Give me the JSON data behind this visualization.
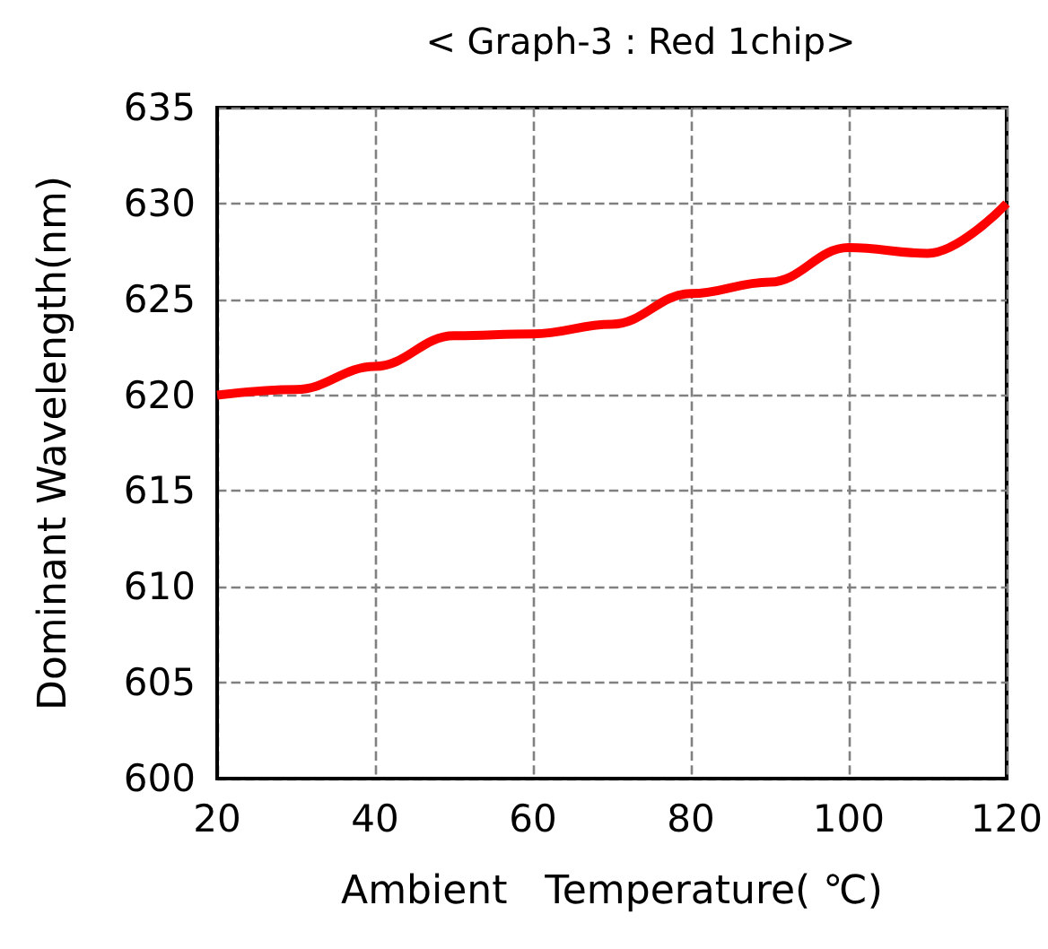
{
  "chart_data": {
    "type": "line",
    "title": "< Graph-3 : Red 1chip>",
    "xlabel": "Ambient   Temperature( ℃)",
    "ylabel": "Dominant Wavelength(nm)",
    "x": [
      20,
      30,
      40,
      50,
      60,
      70,
      80,
      90,
      100,
      110,
      120
    ],
    "series": [
      {
        "color": "#ff0000",
        "values": [
          620.0,
          620.3,
          621.5,
          623.1,
          623.2,
          623.7,
          625.3,
          625.9,
          627.7,
          627.4,
          630.0
        ]
      }
    ],
    "xlim": [
      20,
      120
    ],
    "xticks": [
      20,
      40,
      60,
      80,
      100,
      120
    ],
    "ylim": [
      600,
      635
    ],
    "yticks": [
      600,
      605,
      610,
      615,
      620,
      625,
      630,
      635
    ],
    "grid": true,
    "marker": "none",
    "line_style": "solid"
  }
}
